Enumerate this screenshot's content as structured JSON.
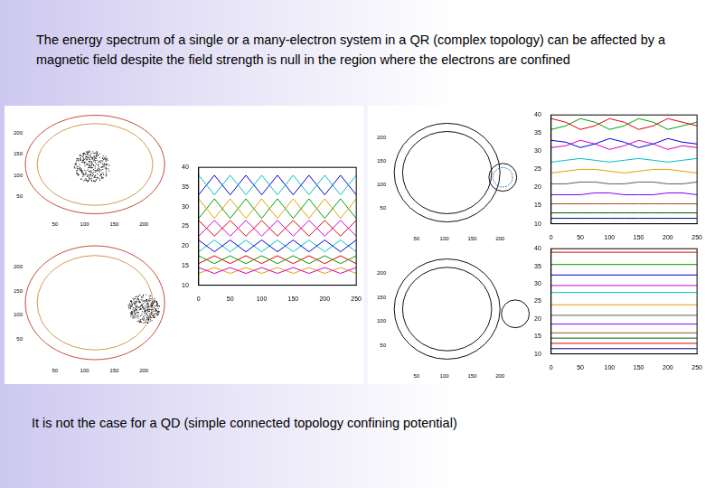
{
  "title": "The energy spectrum of a single or a many-electron system in a QR (complex topology) can be affected by a magnetic field despite the field strength is null in the region where the electrons are confined",
  "footer": "It is not the case for a QD (simple connected topology confining potential)",
  "diagrams": [
    {
      "xlim": [
        0,
        250
      ],
      "ylim": [
        0,
        250
      ],
      "xticks": [
        50,
        100,
        150,
        200
      ],
      "yticks": [
        50,
        100,
        150,
        200
      ]
    },
    {
      "xlim": [
        0,
        250
      ],
      "ylim": [
        0,
        250
      ],
      "xticks": [
        50,
        100,
        150,
        200
      ],
      "yticks": [
        50,
        100,
        150,
        200
      ]
    },
    {
      "xlim": [
        0,
        250
      ],
      "ylim": [
        0,
        250
      ],
      "xticks": [
        50,
        100,
        150,
        200
      ],
      "yticks": [
        50,
        100,
        150,
        200
      ]
    },
    {
      "xlim": [
        0,
        250
      ],
      "ylim": [
        0,
        250
      ],
      "xticks": [
        50,
        100,
        150,
        200
      ],
      "yticks": [
        50,
        100,
        150,
        200
      ]
    }
  ],
  "chart_data": [
    {
      "type": "line",
      "grid": false,
      "xlim": [
        0,
        250
      ],
      "xticks": [
        0,
        50,
        100,
        150,
        200,
        250
      ],
      "ylim": [
        10,
        40
      ],
      "yticks": [
        10,
        15,
        20,
        25,
        30,
        35,
        40
      ],
      "x": [
        0,
        25,
        50,
        75,
        100,
        125,
        150,
        175,
        200,
        225,
        250
      ],
      "series": [
        {
          "color": "#00c0c0",
          "values": [
            38,
            33,
            38,
            33,
            38,
            33,
            38,
            33,
            38,
            33,
            38
          ]
        },
        {
          "color": "#0000e0",
          "values": [
            33,
            38,
            33,
            38,
            33,
            38,
            33,
            38,
            33,
            38,
            33
          ]
        },
        {
          "color": "#e0a000",
          "values": [
            32,
            27,
            32,
            27,
            32,
            27,
            32,
            27,
            32,
            27,
            32
          ]
        },
        {
          "color": "#00a000",
          "values": [
            27,
            32,
            27,
            32,
            27,
            32,
            27,
            32,
            27,
            32,
            27
          ]
        },
        {
          "color": "#e00000",
          "values": [
            26.5,
            22.5,
            26.5,
            22.5,
            26.5,
            22.5,
            26.5,
            22.5,
            26.5,
            22.5,
            26.5
          ]
        },
        {
          "color": "#d000d0",
          "values": [
            22.5,
            26.5,
            22.5,
            26.5,
            22.5,
            26.5,
            22.5,
            26.5,
            22.5,
            26.5,
            22.5
          ]
        },
        {
          "color": "#0000e0",
          "values": [
            21.5,
            18.5,
            21.5,
            18.5,
            21.5,
            18.5,
            21.5,
            18.5,
            21.5,
            18.5,
            21.5
          ]
        },
        {
          "color": "#00c0c0",
          "values": [
            18.5,
            21.5,
            18.5,
            21.5,
            18.5,
            21.5,
            18.5,
            21.5,
            18.5,
            21.5,
            18.5
          ]
        },
        {
          "color": "#00a000",
          "values": [
            17.5,
            15.5,
            17.5,
            15.5,
            17.5,
            15.5,
            17.5,
            15.5,
            17.5,
            15.5,
            17.5
          ]
        },
        {
          "color": "#e00000",
          "values": [
            15.5,
            17.5,
            15.5,
            17.5,
            15.5,
            17.5,
            15.5,
            17.5,
            15.5,
            17.5,
            15.5
          ]
        },
        {
          "color": "#d000d0",
          "values": [
            14.5,
            13,
            14.5,
            13,
            14.5,
            13,
            14.5,
            13,
            14.5,
            13,
            14.5
          ]
        },
        {
          "color": "#e0a000",
          "values": [
            13,
            14.5,
            13,
            14.5,
            13,
            14.5,
            13,
            14.5,
            13,
            14.5,
            13
          ]
        }
      ]
    },
    {
      "type": "line",
      "grid": false,
      "xlim": [
        0,
        250
      ],
      "xticks": [
        0,
        50,
        100,
        150,
        200,
        250
      ],
      "ylim": [
        10,
        40
      ],
      "yticks": [
        10,
        15,
        20,
        25,
        30,
        35,
        40
      ],
      "x": [
        0,
        25,
        50,
        75,
        100,
        125,
        150,
        175,
        200,
        225,
        250
      ],
      "series": [
        {
          "color": "#e00000",
          "values": [
            39,
            38,
            36,
            37,
            39,
            38,
            36,
            37,
            39,
            38,
            37
          ]
        },
        {
          "color": "#00a000",
          "values": [
            36,
            37,
            39,
            38,
            36,
            37,
            39,
            38,
            36,
            37,
            38
          ]
        },
        {
          "color": "#0000e0",
          "values": [
            33,
            32.5,
            31,
            32,
            33.5,
            32.5,
            31,
            32,
            33.5,
            32.5,
            32
          ]
        },
        {
          "color": "#d000d0",
          "values": [
            31,
            31.5,
            33,
            32,
            30.5,
            31.5,
            33,
            32,
            30.5,
            31.5,
            31
          ]
        },
        {
          "color": "#00c0c0",
          "values": [
            27,
            27.5,
            28,
            27.5,
            27,
            27.5,
            28,
            27.5,
            27,
            27.5,
            28
          ]
        },
        {
          "color": "#e0a000",
          "values": [
            24,
            24.5,
            25,
            25,
            24.5,
            24,
            24.5,
            25,
            25,
            24.5,
            24
          ]
        },
        {
          "color": "#606060",
          "values": [
            21,
            21,
            21.5,
            21.5,
            21,
            21,
            21.5,
            21.5,
            21,
            21,
            21.5
          ]
        },
        {
          "color": "#8000ff",
          "values": [
            18,
            18,
            18,
            18.5,
            18.5,
            18,
            18,
            18,
            18.5,
            18.5,
            18
          ]
        },
        {
          "color": "#a05020",
          "values": [
            15.5,
            15.5,
            15.5,
            15.5,
            15.5,
            15.5,
            15.5,
            15.5,
            15.5,
            15.5,
            15.5
          ]
        },
        {
          "color": "#006000",
          "values": [
            13,
            13,
            13,
            13,
            13,
            13,
            13,
            13,
            13,
            13,
            13
          ]
        },
        {
          "color": "#000080",
          "values": [
            11.5,
            11.5,
            11.5,
            11.5,
            11.5,
            11.5,
            11.5,
            11.5,
            11.5,
            11.5,
            11.5
          ]
        }
      ]
    },
    {
      "type": "line",
      "grid": false,
      "xlim": [
        0,
        250
      ],
      "xticks": [
        0,
        50,
        100,
        150,
        200,
        250
      ],
      "ylim": [
        10,
        40
      ],
      "yticks": [
        10,
        15,
        20,
        25,
        30,
        35,
        40
      ],
      "x": [
        0,
        250
      ],
      "series": [
        {
          "color": "#e00000",
          "values": [
            39,
            39
          ]
        },
        {
          "color": "#00a000",
          "values": [
            35.5,
            35.5
          ]
        },
        {
          "color": "#0000e0",
          "values": [
            32.5,
            32.5
          ]
        },
        {
          "color": "#d000d0",
          "values": [
            29.5,
            29.5
          ]
        },
        {
          "color": "#00c0c0",
          "values": [
            27.5,
            27.5
          ]
        },
        {
          "color": "#e0a000",
          "values": [
            24,
            24
          ]
        },
        {
          "color": "#606060",
          "values": [
            21,
            21
          ]
        },
        {
          "color": "#8000ff",
          "values": [
            18.5,
            18.5
          ]
        },
        {
          "color": "#a05020",
          "values": [
            16,
            16
          ]
        },
        {
          "color": "#006000",
          "values": [
            14.5,
            14.5
          ]
        },
        {
          "color": "#e00000",
          "values": [
            13,
            13
          ]
        },
        {
          "color": "#000080",
          "values": [
            11.5,
            11.5
          ]
        }
      ]
    }
  ]
}
